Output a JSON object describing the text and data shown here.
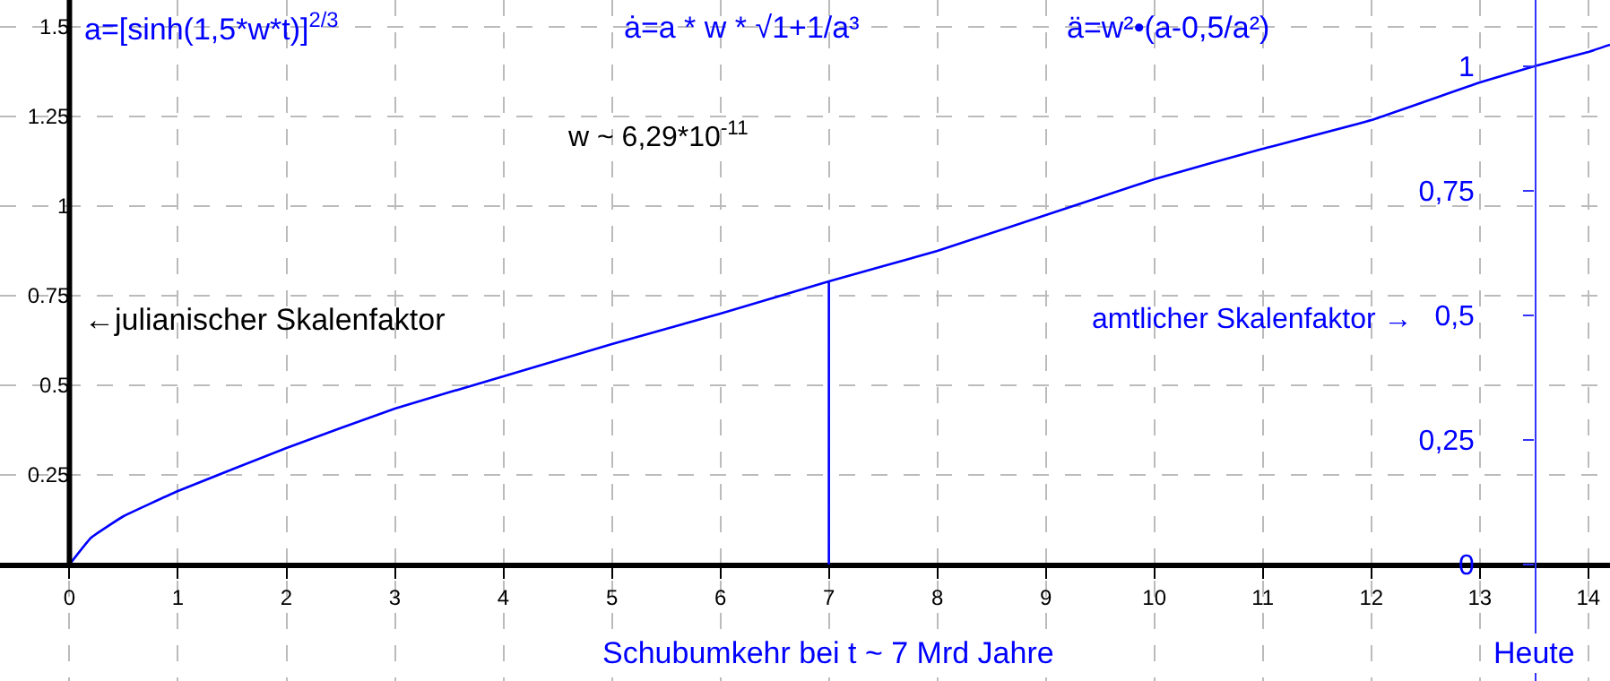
{
  "chart_data": {
    "type": "line",
    "x": [
      0,
      0.2,
      0.5,
      1,
      2,
      3,
      4,
      5,
      6,
      7,
      8,
      9,
      10,
      11,
      12,
      13,
      13.5,
      14,
      14.2
    ],
    "series": [
      {
        "color": "#0000ff",
        "values": [
          0,
          0.075,
          0.135,
          0.205,
          0.325,
          0.435,
          0.525,
          0.615,
          0.7,
          0.79,
          0.875,
          0.975,
          1.075,
          1.16,
          1.24,
          1.345,
          1.39,
          1.43,
          1.45
        ]
      }
    ],
    "xlim": [
      -0.64,
      14.2
    ],
    "ylim": [
      -0.325,
      1.575
    ],
    "xticks": [
      0,
      1,
      2,
      3,
      4,
      5,
      6,
      7,
      8,
      9,
      10,
      11,
      12,
      13,
      14
    ],
    "yticks": [
      0.25,
      0.5,
      0.75,
      1,
      1.25,
      1.5
    ],
    "y2lim": [
      -0.234,
      1.133
    ],
    "y2ticks": [
      {
        "value": 0,
        "label": "0"
      },
      {
        "value": 0.25,
        "label": "0,25"
      },
      {
        "value": 0.5,
        "label": "0,5"
      },
      {
        "value": 0.75,
        "label": "0,75"
      },
      {
        "value": 1,
        "label": "1"
      }
    ],
    "ref_lines": [
      {
        "axis": "x",
        "value": 7,
        "label": "Schubumkehr bei t ~ 7 Mrd Jahre",
        "color": "#0000ff"
      }
    ],
    "annotations": [
      "Heute",
      "a=[sinh(1,5*w*t)]$^{2/3}$",
      "ȧ=a * w * √1+1/a³",
      "ä=w²•(a-0,5/a²)",
      "w ~ 6,29*10$^{-11}$",
      "←julianischer Skalenfaktor",
      "amtlicher Skalenfaktor →"
    ],
    "grid": true,
    "marker": "none",
    "line_style": "solid"
  }
}
